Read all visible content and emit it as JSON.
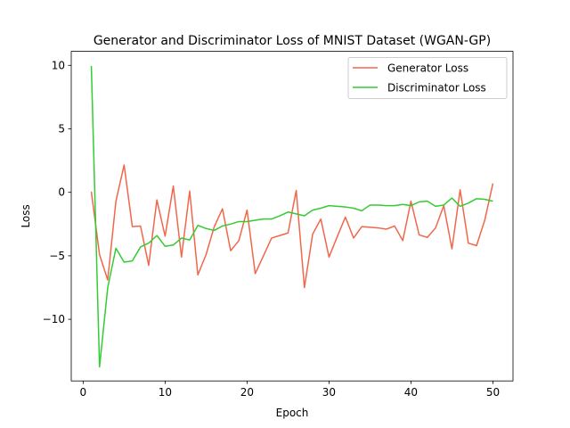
{
  "chart_data": {
    "type": "line",
    "title": "Generator and Discriminator Loss of MNIST Dataset (WGAN-GP)",
    "xlabel": "Epoch",
    "ylabel": "Loss",
    "xlim": [
      -1.45,
      52.45
    ],
    "ylim": [
      -14.85,
      11.1
    ],
    "xticks": [
      0,
      10,
      20,
      30,
      40,
      50
    ],
    "yticks": [
      10,
      5,
      0,
      -5,
      -10
    ],
    "legend_position": "top-right",
    "x": [
      1,
      2,
      3,
      4,
      5,
      6,
      7,
      8,
      9,
      10,
      11,
      12,
      13,
      14,
      15,
      16,
      17,
      18,
      19,
      20,
      21,
      22,
      23,
      24,
      25,
      26,
      27,
      28,
      29,
      30,
      31,
      32,
      33,
      34,
      35,
      36,
      37,
      38,
      39,
      40,
      41,
      42,
      43,
      44,
      45,
      46,
      47,
      48,
      49,
      50
    ],
    "series": [
      {
        "name": "Generator Loss",
        "color": "#f0674b",
        "values": [
          0.05,
          -4.9,
          -6.9,
          -0.7,
          2.15,
          -2.7,
          -2.65,
          -5.75,
          -0.6,
          -3.45,
          0.5,
          -5.1,
          0.1,
          -6.5,
          -4.9,
          -2.7,
          -1.3,
          -4.6,
          -3.8,
          -1.4,
          -6.4,
          -5.0,
          -3.6,
          -3.4,
          -3.2,
          0.15,
          -7.5,
          -3.3,
          -2.1,
          -5.1,
          -3.5,
          -1.95,
          -3.6,
          -2.7,
          -2.75,
          -2.8,
          -2.9,
          -2.65,
          -3.8,
          -0.7,
          -3.35,
          -3.55,
          -2.8,
          -1.05,
          -4.45,
          0.2,
          -4.0,
          -4.2,
          -2.2,
          0.7
        ]
      },
      {
        "name": "Discriminator Loss",
        "color": "#33cc33",
        "values": [
          9.95,
          -13.75,
          -7.5,
          -4.4,
          -5.5,
          -5.4,
          -4.3,
          -4.0,
          -3.4,
          -4.25,
          -4.15,
          -3.6,
          -3.75,
          -2.6,
          -2.85,
          -3.0,
          -2.65,
          -2.5,
          -2.3,
          -2.3,
          -2.2,
          -2.1,
          -2.1,
          -1.85,
          -1.55,
          -1.7,
          -1.85,
          -1.4,
          -1.25,
          -1.05,
          -1.1,
          -1.15,
          -1.25,
          -1.45,
          -1.0,
          -1.0,
          -1.05,
          -1.05,
          -0.95,
          -1.05,
          -0.75,
          -0.7,
          -1.1,
          -1.0,
          -0.45,
          -1.1,
          -0.85,
          -0.5,
          -0.55,
          -0.7
        ]
      }
    ]
  }
}
